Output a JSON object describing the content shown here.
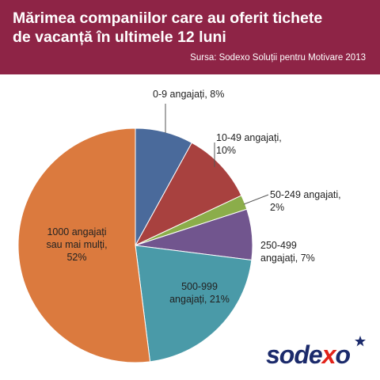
{
  "header": {
    "title_line1": "Mărimea companiilor care au oferit tichete",
    "title_line2": "de vacanță în ultimele 12 luni",
    "source": "Sursa: Sodexo Soluții pentru Motivare 2013",
    "background": "#8e2446"
  },
  "chart_data": {
    "type": "pie",
    "title": "Mărimea companiilor care au oferit tichete de vacanță în ultimele 12 luni",
    "start": "12 o'clock, clockwise",
    "slices": [
      {
        "label": "0-9 angajați, 8%",
        "lines": [
          "0-9 angajați, 8%"
        ],
        "value": 8,
        "color": "#4a6a9b"
      },
      {
        "label": "10-49 angajați, 10%",
        "lines": [
          "10-49 angajați,",
          "10%"
        ],
        "value": 10,
        "color": "#a8413f"
      },
      {
        "label": "50-249 angajati, 2%",
        "lines": [
          "50-249 angajati,",
          "2%"
        ],
        "value": 2,
        "color": "#8bad4a"
      },
      {
        "label": "250-499 angajați, 7%",
        "lines": [
          "250-499",
          "angajați, 7%"
        ],
        "value": 7,
        "color": "#71558e"
      },
      {
        "label": "500-999 angajați, 21%",
        "lines": [
          "500-999",
          "angajați, 21%"
        ],
        "value": 21,
        "color": "#4a9aa8"
      },
      {
        "label": "1000 angajați sau mai mulți, 52%",
        "lines": [
          "1000 angajați",
          "sau mai mulți,",
          "52%"
        ],
        "value": 52,
        "color": "#db7a3e"
      }
    ]
  },
  "logo": {
    "text_before": "sode",
    "text_x": "x",
    "text_after": "o",
    "brand_color": "#1b2a6b",
    "accent_color": "#e2231a"
  }
}
